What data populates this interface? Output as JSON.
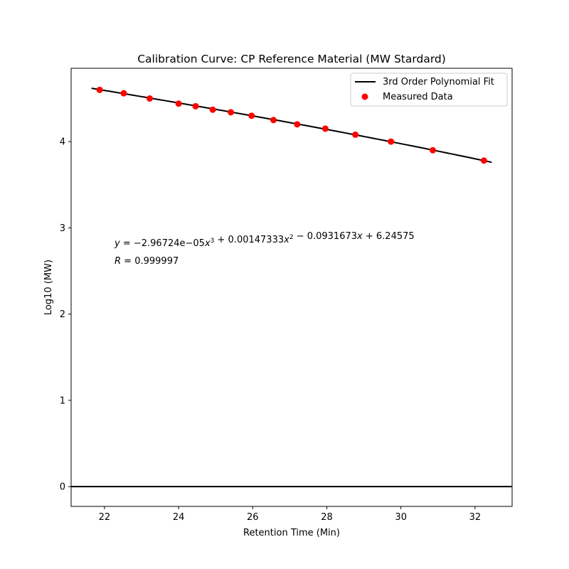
{
  "chart_data": {
    "type": "scatter",
    "title": "Calibration Curve: CP Reference Material (MW Stardard)",
    "xlabel": "Retention Time (Min)",
    "ylabel": "Log10 (MW)",
    "xlim": [
      21.1,
      33.0
    ],
    "ylim": [
      -0.23,
      4.85
    ],
    "x_ticks": [
      22,
      24,
      26,
      28,
      30,
      32
    ],
    "y_ticks": [
      0,
      1,
      2,
      3,
      4
    ],
    "reference_line_y": 0,
    "grid": false,
    "legend_position": "top-right",
    "series": [
      {
        "name": "3rd Order Polynomial Fit",
        "kind": "line",
        "color": "#000000",
        "x_range": [
          21.65,
          32.45
        ],
        "coefficients": [
          -2.96724e-05,
          0.00147333,
          -0.0931673,
          6.24575
        ]
      },
      {
        "name": "Measured Data",
        "kind": "scatter",
        "color": "#ff0000",
        "x": [
          21.87,
          22.52,
          23.22,
          24.0,
          24.46,
          24.92,
          25.41,
          25.97,
          26.56,
          27.2,
          27.96,
          28.77,
          29.73,
          30.86,
          32.24
        ],
        "y": [
          4.6,
          4.56,
          4.5,
          4.44,
          4.41,
          4.37,
          4.34,
          4.3,
          4.25,
          4.2,
          4.15,
          4.08,
          4.0,
          3.9,
          3.78
        ]
      }
    ],
    "annotation": {
      "equation_lhs": "y",
      "equation_rhs_parts": [
        {
          "t": " = −2.96724e−05",
          "italic": false
        },
        {
          "t": "x",
          "italic": true
        },
        {
          "t": "3",
          "sup": true
        },
        {
          "t": " + 0.00147333",
          "italic": false
        },
        {
          "t": "x",
          "italic": true
        },
        {
          "t": "2",
          "sup": true
        },
        {
          "t": " − 0.0931673",
          "italic": false
        },
        {
          "t": "x",
          "italic": true
        },
        {
          "t": " + 6.24575",
          "italic": false
        }
      ],
      "r_label": "R",
      "r_value": " = 0.999997"
    }
  }
}
